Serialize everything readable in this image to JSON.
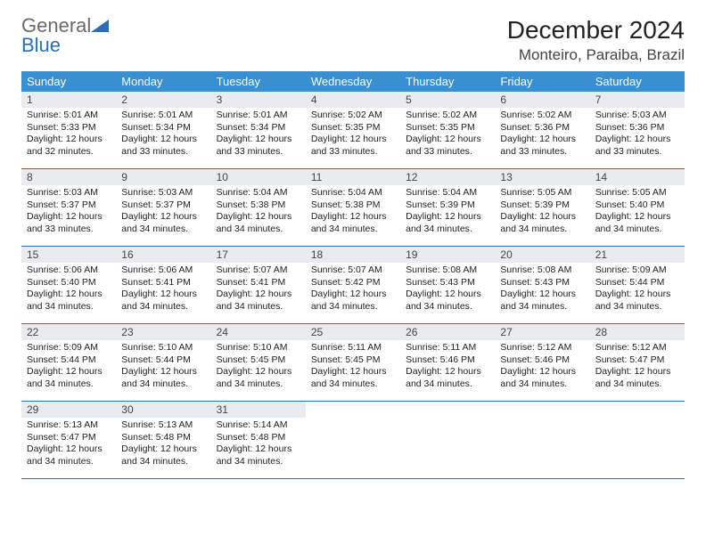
{
  "brand": {
    "word1": "General",
    "word2": "Blue"
  },
  "header": {
    "month_title": "December 2024",
    "location": "Monteiro, Paraiba, Brazil"
  },
  "colors": {
    "header_bg": "#3a8fd0",
    "header_fg": "#ffffff",
    "daynum_bg": "#e9ecef",
    "row_border": "#3a6fa5",
    "logo_gray": "#6b6b6b",
    "logo_blue": "#2a6fb5"
  },
  "weekdays": [
    "Sunday",
    "Monday",
    "Tuesday",
    "Wednesday",
    "Thursday",
    "Friday",
    "Saturday"
  ],
  "weeks": [
    [
      {
        "n": "1",
        "sr": "Sunrise: 5:01 AM",
        "ss": "Sunset: 5:33 PM",
        "dl1": "Daylight: 12 hours",
        "dl2": "and 32 minutes."
      },
      {
        "n": "2",
        "sr": "Sunrise: 5:01 AM",
        "ss": "Sunset: 5:34 PM",
        "dl1": "Daylight: 12 hours",
        "dl2": "and 33 minutes."
      },
      {
        "n": "3",
        "sr": "Sunrise: 5:01 AM",
        "ss": "Sunset: 5:34 PM",
        "dl1": "Daylight: 12 hours",
        "dl2": "and 33 minutes."
      },
      {
        "n": "4",
        "sr": "Sunrise: 5:02 AM",
        "ss": "Sunset: 5:35 PM",
        "dl1": "Daylight: 12 hours",
        "dl2": "and 33 minutes."
      },
      {
        "n": "5",
        "sr": "Sunrise: 5:02 AM",
        "ss": "Sunset: 5:35 PM",
        "dl1": "Daylight: 12 hours",
        "dl2": "and 33 minutes."
      },
      {
        "n": "6",
        "sr": "Sunrise: 5:02 AM",
        "ss": "Sunset: 5:36 PM",
        "dl1": "Daylight: 12 hours",
        "dl2": "and 33 minutes."
      },
      {
        "n": "7",
        "sr": "Sunrise: 5:03 AM",
        "ss": "Sunset: 5:36 PM",
        "dl1": "Daylight: 12 hours",
        "dl2": "and 33 minutes."
      }
    ],
    [
      {
        "n": "8",
        "sr": "Sunrise: 5:03 AM",
        "ss": "Sunset: 5:37 PM",
        "dl1": "Daylight: 12 hours",
        "dl2": "and 33 minutes."
      },
      {
        "n": "9",
        "sr": "Sunrise: 5:03 AM",
        "ss": "Sunset: 5:37 PM",
        "dl1": "Daylight: 12 hours",
        "dl2": "and 34 minutes."
      },
      {
        "n": "10",
        "sr": "Sunrise: 5:04 AM",
        "ss": "Sunset: 5:38 PM",
        "dl1": "Daylight: 12 hours",
        "dl2": "and 34 minutes."
      },
      {
        "n": "11",
        "sr": "Sunrise: 5:04 AM",
        "ss": "Sunset: 5:38 PM",
        "dl1": "Daylight: 12 hours",
        "dl2": "and 34 minutes."
      },
      {
        "n": "12",
        "sr": "Sunrise: 5:04 AM",
        "ss": "Sunset: 5:39 PM",
        "dl1": "Daylight: 12 hours",
        "dl2": "and 34 minutes."
      },
      {
        "n": "13",
        "sr": "Sunrise: 5:05 AM",
        "ss": "Sunset: 5:39 PM",
        "dl1": "Daylight: 12 hours",
        "dl2": "and 34 minutes."
      },
      {
        "n": "14",
        "sr": "Sunrise: 5:05 AM",
        "ss": "Sunset: 5:40 PM",
        "dl1": "Daylight: 12 hours",
        "dl2": "and 34 minutes."
      }
    ],
    [
      {
        "n": "15",
        "sr": "Sunrise: 5:06 AM",
        "ss": "Sunset: 5:40 PM",
        "dl1": "Daylight: 12 hours",
        "dl2": "and 34 minutes."
      },
      {
        "n": "16",
        "sr": "Sunrise: 5:06 AM",
        "ss": "Sunset: 5:41 PM",
        "dl1": "Daylight: 12 hours",
        "dl2": "and 34 minutes."
      },
      {
        "n": "17",
        "sr": "Sunrise: 5:07 AM",
        "ss": "Sunset: 5:41 PM",
        "dl1": "Daylight: 12 hours",
        "dl2": "and 34 minutes."
      },
      {
        "n": "18",
        "sr": "Sunrise: 5:07 AM",
        "ss": "Sunset: 5:42 PM",
        "dl1": "Daylight: 12 hours",
        "dl2": "and 34 minutes."
      },
      {
        "n": "19",
        "sr": "Sunrise: 5:08 AM",
        "ss": "Sunset: 5:43 PM",
        "dl1": "Daylight: 12 hours",
        "dl2": "and 34 minutes."
      },
      {
        "n": "20",
        "sr": "Sunrise: 5:08 AM",
        "ss": "Sunset: 5:43 PM",
        "dl1": "Daylight: 12 hours",
        "dl2": "and 34 minutes."
      },
      {
        "n": "21",
        "sr": "Sunrise: 5:09 AM",
        "ss": "Sunset: 5:44 PM",
        "dl1": "Daylight: 12 hours",
        "dl2": "and 34 minutes."
      }
    ],
    [
      {
        "n": "22",
        "sr": "Sunrise: 5:09 AM",
        "ss": "Sunset: 5:44 PM",
        "dl1": "Daylight: 12 hours",
        "dl2": "and 34 minutes."
      },
      {
        "n": "23",
        "sr": "Sunrise: 5:10 AM",
        "ss": "Sunset: 5:44 PM",
        "dl1": "Daylight: 12 hours",
        "dl2": "and 34 minutes."
      },
      {
        "n": "24",
        "sr": "Sunrise: 5:10 AM",
        "ss": "Sunset: 5:45 PM",
        "dl1": "Daylight: 12 hours",
        "dl2": "and 34 minutes."
      },
      {
        "n": "25",
        "sr": "Sunrise: 5:11 AM",
        "ss": "Sunset: 5:45 PM",
        "dl1": "Daylight: 12 hours",
        "dl2": "and 34 minutes."
      },
      {
        "n": "26",
        "sr": "Sunrise: 5:11 AM",
        "ss": "Sunset: 5:46 PM",
        "dl1": "Daylight: 12 hours",
        "dl2": "and 34 minutes."
      },
      {
        "n": "27",
        "sr": "Sunrise: 5:12 AM",
        "ss": "Sunset: 5:46 PM",
        "dl1": "Daylight: 12 hours",
        "dl2": "and 34 minutes."
      },
      {
        "n": "28",
        "sr": "Sunrise: 5:12 AM",
        "ss": "Sunset: 5:47 PM",
        "dl1": "Daylight: 12 hours",
        "dl2": "and 34 minutes."
      }
    ],
    [
      {
        "n": "29",
        "sr": "Sunrise: 5:13 AM",
        "ss": "Sunset: 5:47 PM",
        "dl1": "Daylight: 12 hours",
        "dl2": "and 34 minutes."
      },
      {
        "n": "30",
        "sr": "Sunrise: 5:13 AM",
        "ss": "Sunset: 5:48 PM",
        "dl1": "Daylight: 12 hours",
        "dl2": "and 34 minutes."
      },
      {
        "n": "31",
        "sr": "Sunrise: 5:14 AM",
        "ss": "Sunset: 5:48 PM",
        "dl1": "Daylight: 12 hours",
        "dl2": "and 34 minutes."
      },
      {
        "empty": true
      },
      {
        "empty": true
      },
      {
        "empty": true
      },
      {
        "empty": true
      }
    ]
  ]
}
